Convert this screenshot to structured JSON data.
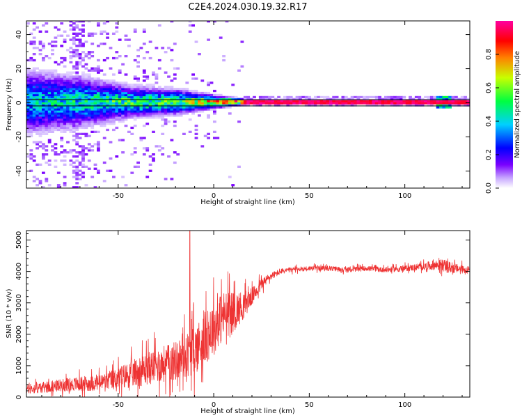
{
  "title": "C2E4.2024.030.19.32.R17",
  "chart_data": [
    {
      "type": "heatmap",
      "xlabel": "Height of straight line (km)",
      "ylabel": "Frequency (Hz)",
      "xlim": [
        -98,
        134
      ],
      "ylim": [
        -50,
        48
      ],
      "xticks": [
        -50,
        0,
        50,
        100
      ],
      "yticks": [
        -40,
        -20,
        0,
        20,
        40
      ],
      "colorbar": {
        "label": "Normalized spectral amplitude",
        "range": [
          0,
          1
        ],
        "ticks": [
          "0.0",
          "0.2",
          "0.4",
          "0.6",
          "0.8"
        ],
        "colormap": "rainbow (white-violet-blue-cyan-green-yellow-red-magenta)"
      },
      "ridge_center_hz": 0,
      "description_points": [
        {
          "x": -98,
          "spread_hz": 20,
          "peak": 0.45
        },
        {
          "x": -70,
          "spread_hz": 16,
          "peak": 0.5
        },
        {
          "x": -45,
          "spread_hz": 10,
          "peak": 0.6
        },
        {
          "x": -20,
          "spread_hz": 8,
          "peak": 0.6
        },
        {
          "x": 0,
          "spread_hz": 4,
          "peak": 0.85
        },
        {
          "x": 15,
          "spread_hz": 2,
          "peak": 1.0
        },
        {
          "x": 50,
          "spread_hz": 1.5,
          "peak": 1.0
        },
        {
          "x": 100,
          "spread_hz": 1.5,
          "peak": 1.0
        },
        {
          "x": 134,
          "spread_hz": 2,
          "peak": 1.0
        }
      ]
    },
    {
      "type": "line",
      "xlabel": "Height of straight line (km)",
      "ylabel": "SNR (10 * v/v)",
      "xlim": [
        -98,
        134
      ],
      "ylim": [
        0,
        5300
      ],
      "xticks": [
        -50,
        0,
        50,
        100
      ],
      "yticks": [
        0,
        1000,
        2000,
        3000,
        4000,
        5000
      ],
      "line_color": "#ee3333",
      "series": [
        {
          "x": [
            -98,
            -90,
            -80,
            -70,
            -60,
            -50,
            -40,
            -30,
            -20,
            -10,
            0,
            5,
            10,
            15,
            20,
            25,
            30,
            35,
            40,
            50,
            60,
            70,
            80,
            90,
            100,
            110,
            115,
            120,
            125,
            134
          ],
          "y": [
            250,
            300,
            380,
            420,
            450,
            600,
            800,
            1000,
            1150,
            1500,
            2200,
            2600,
            2700,
            2900,
            3200,
            3600,
            3850,
            4000,
            4050,
            4100,
            4100,
            4050,
            4100,
            4050,
            4100,
            4150,
            4200,
            4200,
            4100,
            4050
          ],
          "noise": [
            200,
            220,
            250,
            300,
            320,
            450,
            600,
            700,
            800,
            1000,
            1100,
            1000,
            800,
            600,
            350,
            250,
            150,
            120,
            100,
            100,
            100,
            100,
            100,
            110,
            120,
            150,
            200,
            250,
            200,
            150
          ]
        }
      ]
    }
  ]
}
